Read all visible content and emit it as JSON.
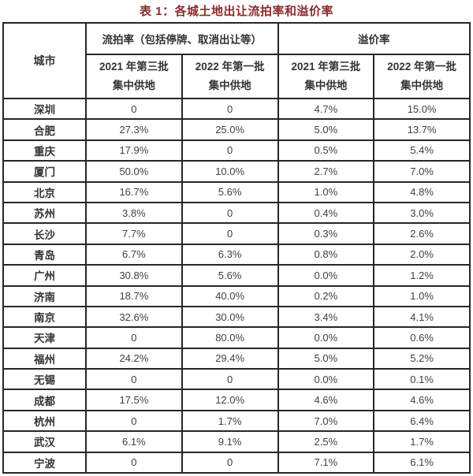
{
  "title": "表 1：各城土地出让流拍率和溢价率",
  "table": {
    "header": {
      "city_label": "城市",
      "group1_label": "流拍率（包括停牌、取消出让等）",
      "group2_label": "溢价率",
      "sub_headers": {
        "g1_col1": "2021 年第三批\n集中供地",
        "g1_col2": "2022 年第一批\n集中供地",
        "g2_col1": "2021 年第三批\n集中供地",
        "g2_col2": "2022 年第一批\n集中供地"
      }
    },
    "rows": [
      {
        "city": "深圳",
        "liupai_2021_b3": "0",
        "liupai_2022_b1": "0",
        "yijia_2021_b3": "4.7%",
        "yijia_2022_b1": "15.0%"
      },
      {
        "city": "合肥",
        "liupai_2021_b3": "27.3%",
        "liupai_2022_b1": "25.0%",
        "yijia_2021_b3": "5.0%",
        "yijia_2022_b1": "13.7%"
      },
      {
        "city": "重庆",
        "liupai_2021_b3": "17.9%",
        "liupai_2022_b1": "0",
        "yijia_2021_b3": "0.5%",
        "yijia_2022_b1": "5.4%"
      },
      {
        "city": "厦门",
        "liupai_2021_b3": "50.0%",
        "liupai_2022_b1": "10.0%",
        "yijia_2021_b3": "2.7%",
        "yijia_2022_b1": "7.0%"
      },
      {
        "city": "北京",
        "liupai_2021_b3": "16.7%",
        "liupai_2022_b1": "5.6%",
        "yijia_2021_b3": "1.0%",
        "yijia_2022_b1": "4.8%"
      },
      {
        "city": "苏州",
        "liupai_2021_b3": "3.8%",
        "liupai_2022_b1": "0",
        "yijia_2021_b3": "0.4%",
        "yijia_2022_b1": "3.0%"
      },
      {
        "city": "长沙",
        "liupai_2021_b3": "7.7%",
        "liupai_2022_b1": "0",
        "yijia_2021_b3": "0.3%",
        "yijia_2022_b1": "2.6%"
      },
      {
        "city": "青岛",
        "liupai_2021_b3": "6.7%",
        "liupai_2022_b1": "6.3%",
        "yijia_2021_b3": "0.8%",
        "yijia_2022_b1": "2.0%"
      },
      {
        "city": "广州",
        "liupai_2021_b3": "30.8%",
        "liupai_2022_b1": "5.6%",
        "yijia_2021_b3": "0.0%",
        "yijia_2022_b1": "1.2%"
      },
      {
        "city": "济南",
        "liupai_2021_b3": "18.7%",
        "liupai_2022_b1": "40.0%",
        "yijia_2021_b3": "0.2%",
        "yijia_2022_b1": "1.0%"
      },
      {
        "city": "南京",
        "liupai_2021_b3": "32.6%",
        "liupai_2022_b1": "30.0%",
        "yijia_2021_b3": "3.4%",
        "yijia_2022_b1": "4.1%"
      },
      {
        "city": "天津",
        "liupai_2021_b3": "0",
        "liupai_2022_b1": "80.0%",
        "yijia_2021_b3": "0.0%",
        "yijia_2022_b1": "0.6%"
      },
      {
        "city": "福州",
        "liupai_2021_b3": "24.2%",
        "liupai_2022_b1": "29.4%",
        "yijia_2021_b3": "5.0%",
        "yijia_2022_b1": "5.2%"
      },
      {
        "city": "无锡",
        "liupai_2021_b3": "0",
        "liupai_2022_b1": "0",
        "yijia_2021_b3": "0.0%",
        "yijia_2022_b1": "0.1%"
      },
      {
        "city": "成都",
        "liupai_2021_b3": "17.5%",
        "liupai_2022_b1": "12.0%",
        "yijia_2021_b3": "4.6%",
        "yijia_2022_b1": "4.6%"
      },
      {
        "city": "杭州",
        "liupai_2021_b3": "0",
        "liupai_2022_b1": "1.7%",
        "yijia_2021_b3": "7.0%",
        "yijia_2022_b1": "6.4%"
      },
      {
        "city": "武汉",
        "liupai_2021_b3": "6.1%",
        "liupai_2022_b1": "9.1%",
        "yijia_2021_b3": "2.5%",
        "yijia_2022_b1": "1.7%"
      },
      {
        "city": "宁波",
        "liupai_2021_b3": "0",
        "liupai_2022_b1": "0",
        "yijia_2021_b3": "7.1%",
        "yijia_2022_b1": "6.1%"
      }
    ],
    "value_keys": [
      "liupai_2021_b3",
      "liupai_2022_b1",
      "yijia_2021_b3",
      "yijia_2022_b1"
    ]
  },
  "colors": {
    "title": "#8B2A2A",
    "border": "#262626",
    "header_text": "#333333",
    "value_text": "#404040"
  }
}
